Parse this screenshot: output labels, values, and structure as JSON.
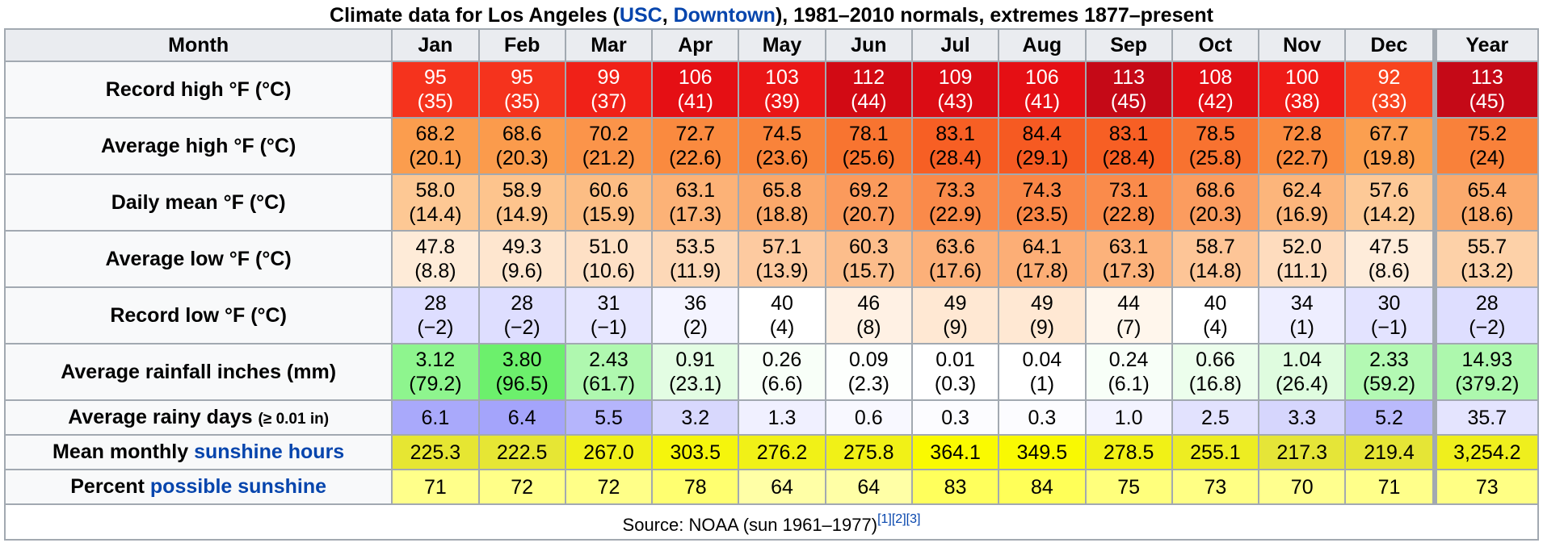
{
  "caption": {
    "prefix": "Climate data for Los Angeles (",
    "link1": "USC",
    "sep": ", ",
    "link2": "Downtown",
    "suffix": "), 1981–2010 normals, extremes 1877–present"
  },
  "header": {
    "month_label": "Month",
    "months": [
      "Jan",
      "Feb",
      "Mar",
      "Apr",
      "May",
      "Jun",
      "Jul",
      "Aug",
      "Sep",
      "Oct",
      "Nov",
      "Dec"
    ],
    "year_label": "Year"
  },
  "rows": [
    {
      "key": "record-high",
      "label": "Record high °F (°C)",
      "cells": [
        {
          "f": "95",
          "c": "(35)",
          "bg": "#f5331d",
          "fg": "#ffffff"
        },
        {
          "f": "95",
          "c": "(35)",
          "bg": "#f5331d",
          "fg": "#ffffff"
        },
        {
          "f": "99",
          "c": "(37)",
          "bg": "#f02118",
          "fg": "#ffffff"
        },
        {
          "f": "106",
          "c": "(41)",
          "bg": "#e50f14",
          "fg": "#ffffff"
        },
        {
          "f": "103",
          "c": "(39)",
          "bg": "#ea1616",
          "fg": "#ffffff"
        },
        {
          "f": "112",
          "c": "(44)",
          "bg": "#d20a14",
          "fg": "#ffffff"
        },
        {
          "f": "109",
          "c": "(43)",
          "bg": "#db0c14",
          "fg": "#ffffff"
        },
        {
          "f": "106",
          "c": "(41)",
          "bg": "#e50f14",
          "fg": "#ffffff"
        },
        {
          "f": "113",
          "c": "(45)",
          "bg": "#c50917",
          "fg": "#ffffff"
        },
        {
          "f": "108",
          "c": "(42)",
          "bg": "#e00e14",
          "fg": "#ffffff"
        },
        {
          "f": "100",
          "c": "(38)",
          "bg": "#ee1b17",
          "fg": "#ffffff"
        },
        {
          "f": "92",
          "c": "(33)",
          "bg": "#f8441f",
          "fg": "#ffffff"
        }
      ],
      "year": {
        "f": "113",
        "c": "(45)",
        "bg": "#c50917",
        "fg": "#ffffff"
      }
    },
    {
      "key": "avg-high",
      "label": "Average high °F (°C)",
      "cells": [
        {
          "f": "68.2",
          "c": "(20.1)",
          "bg": "#fb9d4e",
          "fg": "#000000"
        },
        {
          "f": "68.6",
          "c": "(20.3)",
          "bg": "#fb9b4c",
          "fg": "#000000"
        },
        {
          "f": "70.2",
          "c": "(21.2)",
          "bg": "#fb944a",
          "fg": "#000000"
        },
        {
          "f": "72.7",
          "c": "(22.6)",
          "bg": "#fa8a3f",
          "fg": "#000000"
        },
        {
          "f": "74.5",
          "c": "(23.6)",
          "bg": "#f9833a",
          "fg": "#000000"
        },
        {
          "f": "78.1",
          "c": "(25.6)",
          "bg": "#f87430",
          "fg": "#000000"
        },
        {
          "f": "83.1",
          "c": "(28.4)",
          "bg": "#f75f24",
          "fg": "#000000"
        },
        {
          "f": "84.4",
          "c": "(29.1)",
          "bg": "#f65a22",
          "fg": "#000000"
        },
        {
          "f": "83.1",
          "c": "(28.4)",
          "bg": "#f75f24",
          "fg": "#000000"
        },
        {
          "f": "78.5",
          "c": "(25.8)",
          "bg": "#f87230",
          "fg": "#000000"
        },
        {
          "f": "72.8",
          "c": "(22.7)",
          "bg": "#fa8a3f",
          "fg": "#000000"
        },
        {
          "f": "67.7",
          "c": "(19.8)",
          "bg": "#fb9f50",
          "fg": "#000000"
        }
      ],
      "year": {
        "f": "75.2",
        "c": "(24)",
        "bg": "#f9813a",
        "fg": "#000000"
      }
    },
    {
      "key": "daily-mean",
      "label": "Daily mean °F (°C)",
      "cells": [
        {
          "f": "58.0",
          "c": "(14.4)",
          "bg": "#fdc894",
          "fg": "#000000"
        },
        {
          "f": "58.9",
          "c": "(14.9)",
          "bg": "#fdc48d",
          "fg": "#000000"
        },
        {
          "f": "60.6",
          "c": "(15.9)",
          "bg": "#fcbd84",
          "fg": "#000000"
        },
        {
          "f": "63.1",
          "c": "(17.3)",
          "bg": "#fcb277",
          "fg": "#000000"
        },
        {
          "f": "65.8",
          "c": "(18.8)",
          "bg": "#fba86a",
          "fg": "#000000"
        },
        {
          "f": "69.2",
          "c": "(20.7)",
          "bg": "#fb9a5c",
          "fg": "#000000"
        },
        {
          "f": "73.3",
          "c": "(22.9)",
          "bg": "#fa8a4a",
          "fg": "#000000"
        },
        {
          "f": "74.3",
          "c": "(23.5)",
          "bg": "#fa8646",
          "fg": "#000000"
        },
        {
          "f": "73.1",
          "c": "(22.8)",
          "bg": "#fa8b4b",
          "fg": "#000000"
        },
        {
          "f": "68.6",
          "c": "(20.3)",
          "bg": "#fb9c5f",
          "fg": "#000000"
        },
        {
          "f": "62.4",
          "c": "(16.9)",
          "bg": "#fcb57b",
          "fg": "#000000"
        },
        {
          "f": "57.6",
          "c": "(14.2)",
          "bg": "#fdc997",
          "fg": "#000000"
        }
      ],
      "year": {
        "f": "65.4",
        "c": "(18.6)",
        "bg": "#fbaa6d",
        "fg": "#000000"
      }
    },
    {
      "key": "avg-low",
      "label": "Average low °F (°C)",
      "cells": [
        {
          "f": "47.8",
          "c": "(8.8)",
          "bg": "#feebd8",
          "fg": "#000000"
        },
        {
          "f": "49.3",
          "c": "(9.6)",
          "bg": "#fee6cf",
          "fg": "#000000"
        },
        {
          "f": "51.0",
          "c": "(10.6)",
          "bg": "#fee0c5",
          "fg": "#000000"
        },
        {
          "f": "53.5",
          "c": "(11.9)",
          "bg": "#fdd8b7",
          "fg": "#000000"
        },
        {
          "f": "57.1",
          "c": "(13.9)",
          "bg": "#fdcaa0",
          "fg": "#000000"
        },
        {
          "f": "60.3",
          "c": "(15.7)",
          "bg": "#fcbd8b",
          "fg": "#000000"
        },
        {
          "f": "63.6",
          "c": "(17.6)",
          "bg": "#fcb079",
          "fg": "#000000"
        },
        {
          "f": "64.1",
          "c": "(17.8)",
          "bg": "#fcae76",
          "fg": "#000000"
        },
        {
          "f": "63.1",
          "c": "(17.3)",
          "bg": "#fcb27b",
          "fg": "#000000"
        },
        {
          "f": "58.7",
          "c": "(14.8)",
          "bg": "#fdc597",
          "fg": "#000000"
        },
        {
          "f": "52.0",
          "c": "(11.1)",
          "bg": "#fedcbe",
          "fg": "#000000"
        },
        {
          "f": "47.5",
          "c": "(8.6)",
          "bg": "#feecda",
          "fg": "#000000"
        }
      ],
      "year": {
        "f": "55.7",
        "c": "(13.2)",
        "bg": "#fdd1a8",
        "fg": "#000000"
      }
    },
    {
      "key": "record-low",
      "label": "Record low °F (°C)",
      "cells": [
        {
          "f": "28",
          "c": "(−2)",
          "bg": "#dedeff",
          "fg": "#000000"
        },
        {
          "f": "28",
          "c": "(−2)",
          "bg": "#dedeff",
          "fg": "#000000"
        },
        {
          "f": "31",
          "c": "(−1)",
          "bg": "#e6e6ff",
          "fg": "#000000"
        },
        {
          "f": "36",
          "c": "(2)",
          "bg": "#f4f4ff",
          "fg": "#000000"
        },
        {
          "f": "40",
          "c": "(4)",
          "bg": "#ffffff",
          "fg": "#000000"
        },
        {
          "f": "46",
          "c": "(8)",
          "bg": "#fff1e4",
          "fg": "#000000"
        },
        {
          "f": "49",
          "c": "(9)",
          "bg": "#ffe8d3",
          "fg": "#000000"
        },
        {
          "f": "49",
          "c": "(9)",
          "bg": "#ffe8d3",
          "fg": "#000000"
        },
        {
          "f": "44",
          "c": "(7)",
          "bg": "#fff6ec",
          "fg": "#000000"
        },
        {
          "f": "40",
          "c": "(4)",
          "bg": "#ffffff",
          "fg": "#000000"
        },
        {
          "f": "34",
          "c": "(1)",
          "bg": "#eeeeff",
          "fg": "#000000"
        },
        {
          "f": "30",
          "c": "(−1)",
          "bg": "#e3e3ff",
          "fg": "#000000"
        }
      ],
      "year": {
        "f": "28",
        "c": "(−2)",
        "bg": "#dedeff",
        "fg": "#000000"
      }
    },
    {
      "key": "avg-rainfall",
      "label": "Average rainfall inches (mm)",
      "cells": [
        {
          "f": "3.12",
          "c": "(79.2)",
          "bg": "#8ef58e",
          "fg": "#000000"
        },
        {
          "f": "3.80",
          "c": "(96.5)",
          "bg": "#6cf06c",
          "fg": "#000000"
        },
        {
          "f": "2.43",
          "c": "(61.7)",
          "bg": "#aff8af",
          "fg": "#000000"
        },
        {
          "f": "0.91",
          "c": "(23.1)",
          "bg": "#e3fde3",
          "fg": "#000000"
        },
        {
          "f": "0.26",
          "c": "(6.6)",
          "bg": "#f8fff8",
          "fg": "#000000"
        },
        {
          "f": "0.09",
          "c": "(2.3)",
          "bg": "#fdfffd",
          "fg": "#000000"
        },
        {
          "f": "0.01",
          "c": "(0.3)",
          "bg": "#ffffff",
          "fg": "#000000"
        },
        {
          "f": "0.04",
          "c": "(1)",
          "bg": "#ffffff",
          "fg": "#000000"
        },
        {
          "f": "0.24",
          "c": "(6.1)",
          "bg": "#f8fff8",
          "fg": "#000000"
        },
        {
          "f": "0.66",
          "c": "(16.8)",
          "bg": "#ecfeec",
          "fg": "#000000"
        },
        {
          "f": "1.04",
          "c": "(26.4)",
          "bg": "#dffcdf",
          "fg": "#000000"
        },
        {
          "f": "2.33",
          "c": "(59.2)",
          "bg": "#b3f9b3",
          "fg": "#000000"
        }
      ],
      "year": {
        "f": "14.93",
        "c": "(379.2)",
        "bg": "#adf8ad",
        "fg": "#000000"
      }
    }
  ],
  "rainy_days": {
    "label": "Average rainy days",
    "label_small": "(≥ 0.01 in)",
    "cells": [
      {
        "v": "6.1",
        "bg": "#a9a9fb"
      },
      {
        "v": "6.4",
        "bg": "#a4a4fb"
      },
      {
        "v": "5.5",
        "bg": "#b5b5fc"
      },
      {
        "v": "3.2",
        "bg": "#d8d8fd"
      },
      {
        "v": "1.3",
        "bg": "#f0f0ff"
      },
      {
        "v": "0.6",
        "bg": "#f8f8ff"
      },
      {
        "v": "0.3",
        "bg": "#fcfcff"
      },
      {
        "v": "0.3",
        "bg": "#fcfcff"
      },
      {
        "v": "1.0",
        "bg": "#f3f3ff"
      },
      {
        "v": "2.5",
        "bg": "#e2e2fe"
      },
      {
        "v": "3.3",
        "bg": "#d6d6fd"
      },
      {
        "v": "5.2",
        "bg": "#babafc"
      }
    ],
    "year": {
      "v": "35.7",
      "bg": "#e4e4fe"
    }
  },
  "sunshine_hours": {
    "label_prefix": "Mean monthly ",
    "label_link": "sunshine hours",
    "cells": [
      {
        "v": "225.3",
        "bg": "#e6e632"
      },
      {
        "v": "222.5",
        "bg": "#e6e634"
      },
      {
        "v": "267.0",
        "bg": "#f0f01a"
      },
      {
        "v": "303.5",
        "bg": "#f5f50c"
      },
      {
        "v": "276.2",
        "bg": "#f1f117"
      },
      {
        "v": "275.8",
        "bg": "#f1f117"
      },
      {
        "v": "364.1",
        "bg": "#fafa00"
      },
      {
        "v": "349.5",
        "bg": "#f9f902"
      },
      {
        "v": "278.5",
        "bg": "#f1f116"
      },
      {
        "v": "255.1",
        "bg": "#eded22"
      },
      {
        "v": "217.3",
        "bg": "#e5e538"
      },
      {
        "v": "219.4",
        "bg": "#e5e536"
      }
    ],
    "year": {
      "v": "3,254.2",
      "bg": "#efef1d"
    }
  },
  "sunshine_percent": {
    "label_prefix": "Percent ",
    "label_link": "possible sunshine",
    "cells": [
      {
        "v": "71",
        "bg": "#ffff8a"
      },
      {
        "v": "72",
        "bg": "#ffff88"
      },
      {
        "v": "72",
        "bg": "#ffff88"
      },
      {
        "v": "78",
        "bg": "#ffff70"
      },
      {
        "v": "64",
        "bg": "#ffffa6"
      },
      {
        "v": "64",
        "bg": "#ffffa6"
      },
      {
        "v": "83",
        "bg": "#ffff5c"
      },
      {
        "v": "84",
        "bg": "#ffff58"
      },
      {
        "v": "75",
        "bg": "#ffff7c"
      },
      {
        "v": "73",
        "bg": "#ffff84"
      },
      {
        "v": "70",
        "bg": "#ffff8e"
      },
      {
        "v": "71",
        "bg": "#ffff8a"
      }
    ],
    "year": {
      "v": "73",
      "bg": "#ffff84"
    }
  },
  "source": {
    "text": "Source: NOAA (sun 1961–1977)",
    "refs": [
      "[1]",
      "[2]",
      "[3]"
    ]
  }
}
